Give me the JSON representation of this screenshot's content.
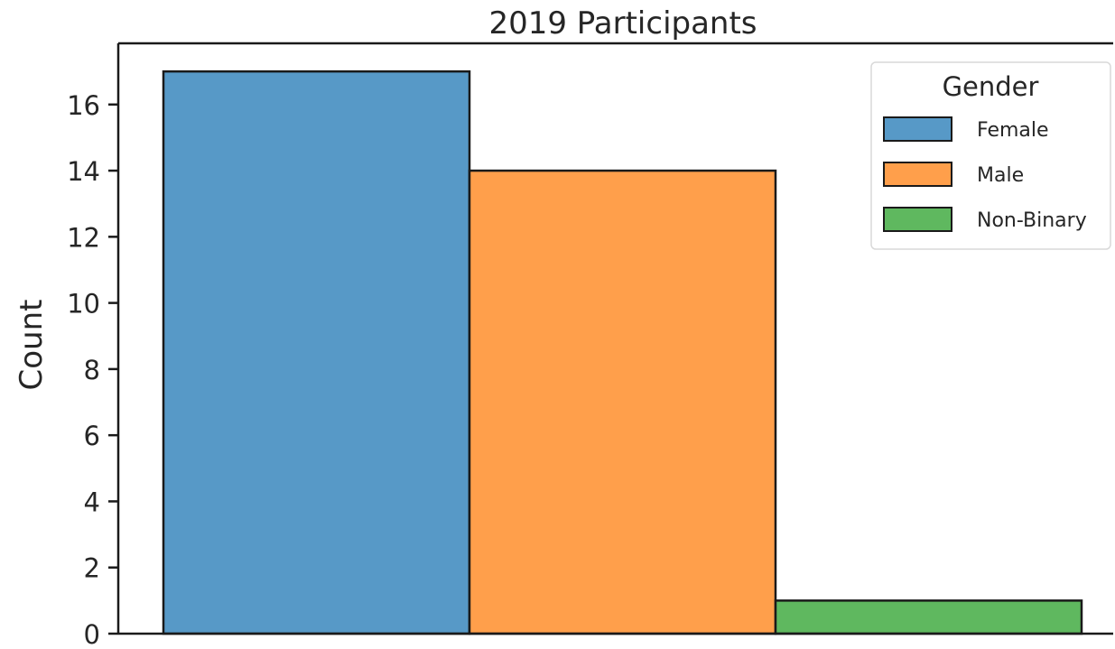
{
  "chart_data": {
    "type": "bar",
    "title": "2019 Participants",
    "xlabel": "",
    "ylabel": "Count",
    "ylim": [
      0,
      17.85
    ],
    "yticks": [
      0,
      2,
      4,
      6,
      8,
      10,
      12,
      14,
      16
    ],
    "grid": false,
    "legend": {
      "title": "Gender",
      "placement": "top-right"
    },
    "categories": [
      "Female",
      "Male",
      "Non-Binary"
    ],
    "values": [
      17,
      14,
      1
    ],
    "colors": [
      "#5799c7",
      "#ff9f4b",
      "#5fb85f"
    ]
  }
}
